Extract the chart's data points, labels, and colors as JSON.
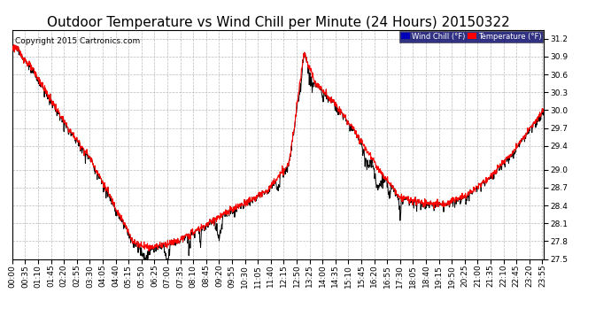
{
  "title": "Outdoor Temperature vs Wind Chill per Minute (24 Hours) 20150322",
  "copyright": "Copyright 2015 Cartronics.com",
  "ylim": [
    27.5,
    31.35
  ],
  "yticks": [
    27.5,
    27.8,
    28.1,
    28.4,
    28.7,
    29.0,
    29.4,
    29.7,
    30.0,
    30.3,
    30.6,
    30.9,
    31.2
  ],
  "bg_color": "#ffffff",
  "grid_color": "#bbbbbb",
  "temp_color": "#ff0000",
  "wc_color": "#000000",
  "legend_wc_bg": "#0000bb",
  "legend_temp_bg": "#ff0000",
  "legend_wc_text": "Wind Chill (°F)",
  "legend_temp_text": "Temperature (°F)",
  "title_fontsize": 11,
  "tick_fontsize": 6.5,
  "copyright_fontsize": 6.5
}
